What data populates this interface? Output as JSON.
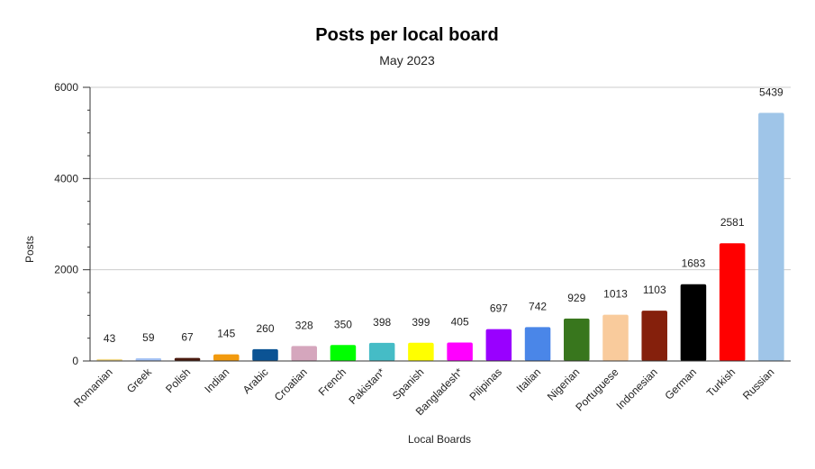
{
  "chart_data": {
    "type": "bar",
    "title": "Posts per local board",
    "subtitle": "May 2023",
    "xlabel": "Local Boards",
    "ylabel": "Posts",
    "ylim": [
      0,
      6000
    ],
    "yticks": [
      0,
      2000,
      4000,
      6000
    ],
    "grid": true,
    "categories": [
      "Romanian",
      "Greek",
      "Polish",
      "Indian",
      "Arabic",
      "Croatian",
      "French",
      "Pakistan*",
      "Spanish",
      "Bangladesh*",
      "Pilipinas",
      "Italian",
      "Nigerian",
      "Portuguese",
      "Indonesian",
      "German",
      "Turkish",
      "Russian"
    ],
    "values": [
      43,
      59,
      67,
      145,
      260,
      328,
      350,
      398,
      399,
      405,
      697,
      742,
      929,
      1013,
      1103,
      1683,
      2581,
      5439
    ],
    "colors": [
      "#f1d98a",
      "#a4c2f4",
      "#4a1a0e",
      "#f29a0e",
      "#0b5394",
      "#d5a6bd",
      "#00ff00",
      "#45bcc6",
      "#ffff00",
      "#ff00ff",
      "#9900ff",
      "#4a86e8",
      "#38761d",
      "#f9cb9c",
      "#85200c",
      "#000000",
      "#ff0000",
      "#9fc5e8"
    ]
  }
}
